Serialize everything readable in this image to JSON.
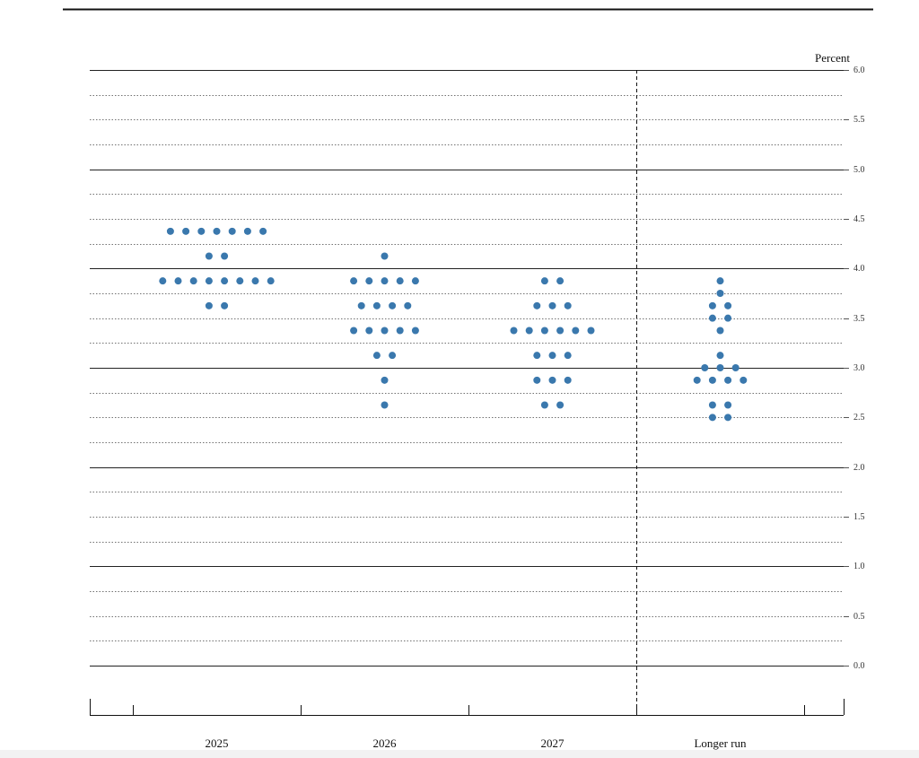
{
  "chart_data": {
    "type": "dot",
    "y_label": "Percent",
    "categories": [
      "2025",
      "2026",
      "2027",
      "Longer run"
    ],
    "values": [
      [
        4.375,
        4.375,
        4.375,
        4.375,
        4.375,
        4.375,
        4.375,
        4.125,
        4.125,
        3.875,
        3.875,
        3.875,
        3.875,
        3.875,
        3.875,
        3.875,
        3.875,
        3.625,
        3.625
      ],
      [
        4.125,
        3.875,
        3.875,
        3.875,
        3.875,
        3.875,
        3.625,
        3.625,
        3.625,
        3.625,
        3.375,
        3.375,
        3.375,
        3.375,
        3.375,
        3.125,
        3.125,
        2.875,
        2.625
      ],
      [
        3.875,
        3.875,
        3.625,
        3.625,
        3.625,
        3.375,
        3.375,
        3.375,
        3.375,
        3.375,
        3.375,
        3.125,
        3.125,
        3.125,
        2.875,
        2.875,
        2.875,
        2.625,
        2.625
      ],
      [
        3.875,
        3.75,
        3.625,
        3.625,
        3.5,
        3.5,
        3.375,
        3.125,
        3.0,
        3.0,
        3.0,
        2.875,
        2.875,
        2.875,
        2.875,
        2.625,
        2.625,
        2.5,
        2.5
      ]
    ],
    "color": "#3a78ad",
    "ylim": [
      0,
      6
    ],
    "yticks": [
      {
        "value": 0,
        "label": "0.0"
      },
      0.5,
      {
        "value": 1,
        "label": "1.0"
      },
      1.5,
      {
        "value": 2,
        "label": "2.0"
      },
      2.5,
      {
        "value": 3,
        "label": "3.0"
      },
      3.5,
      {
        "value": 4,
        "label": "4.0"
      },
      4.5,
      {
        "value": 5,
        "label": "5.0"
      },
      5.5,
      {
        "value": 6,
        "label": "6.0"
      }
    ],
    "grid": true
  }
}
